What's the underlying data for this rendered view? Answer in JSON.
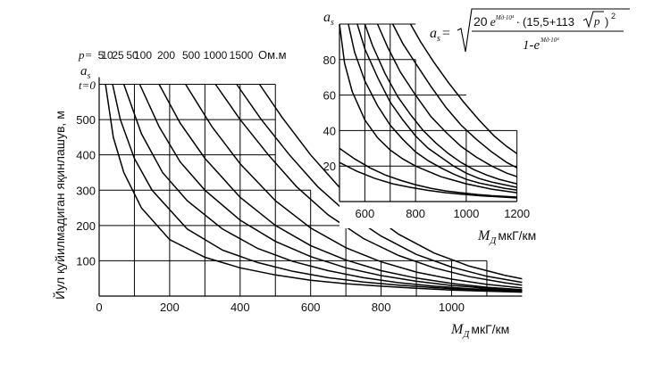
{
  "chart_data": [
    {
      "type": "line",
      "ylabel": "Йул қуйилмадиган яқинлашув, м",
      "xlabel_symbol": "M",
      "xlabel_sub": "Д",
      "xlabel_unit": "мкГ/км",
      "axis_symbol": "a",
      "axis_sub": "s",
      "axis_note": "t=0",
      "xticks": [
        0,
        200,
        400,
        600,
        800,
        1000
      ],
      "yticks": [
        100,
        200,
        300,
        400,
        500
      ],
      "xlim": [
        0,
        1200
      ],
      "ylim": [
        0,
        600
      ],
      "p_prefix": "p=",
      "p_labels": [
        "5",
        "10",
        "25",
        "50",
        "100",
        "200",
        "500",
        "1000",
        "1500"
      ],
      "p_unit": "Ом.м",
      "series": [
        {
          "name": "5",
          "points": [
            [
              18,
              600
            ],
            [
              40,
              450
            ],
            [
              70,
              350
            ],
            [
              120,
              250
            ],
            [
              200,
              160
            ],
            [
              300,
              110
            ],
            [
              400,
              80
            ],
            [
              500,
              60
            ],
            [
              600,
              45
            ],
            [
              700,
              35
            ],
            [
              800,
              28
            ],
            [
              900,
              22
            ],
            [
              1000,
              17
            ],
            [
              1100,
              14
            ],
            [
              1200,
              11
            ]
          ]
        },
        {
          "name": "10",
          "points": [
            [
              38,
              600
            ],
            [
              60,
              500
            ],
            [
              100,
              390
            ],
            [
              150,
              300
            ],
            [
              250,
              190
            ],
            [
              350,
              130
            ],
            [
              450,
              95
            ],
            [
              550,
              70
            ],
            [
              650,
              52
            ],
            [
              750,
              40
            ],
            [
              850,
              31
            ],
            [
              950,
              24
            ],
            [
              1050,
              18
            ],
            [
              1200,
              13
            ]
          ]
        },
        {
          "name": "25",
          "points": [
            [
              70,
              600
            ],
            [
              120,
              460
            ],
            [
              180,
              350
            ],
            [
              250,
              270
            ],
            [
              350,
              190
            ],
            [
              450,
              135
            ],
            [
              550,
              98
            ],
            [
              650,
              72
            ],
            [
              750,
              52
            ],
            [
              850,
              38
            ],
            [
              950,
              28
            ],
            [
              1050,
              21
            ],
            [
              1200,
              15
            ]
          ]
        },
        {
          "name": "50",
          "points": [
            [
              115,
              600
            ],
            [
              170,
              480
            ],
            [
              230,
              380
            ],
            [
              300,
              300
            ],
            [
              400,
              215
            ],
            [
              500,
              155
            ],
            [
              600,
              112
            ],
            [
              700,
              80
            ],
            [
              800,
              58
            ],
            [
              900,
              42
            ],
            [
              1000,
              30
            ],
            [
              1100,
              22
            ],
            [
              1200,
              16
            ]
          ]
        },
        {
          "name": "100",
          "points": [
            [
              170,
              600
            ],
            [
              230,
              490
            ],
            [
              300,
              390
            ],
            [
              400,
              280
            ],
            [
              500,
              200
            ],
            [
              600,
              143
            ],
            [
              700,
              102
            ],
            [
              800,
              72
            ],
            [
              900,
              51
            ],
            [
              1000,
              36
            ],
            [
              1100,
              25
            ],
            [
              1200,
              18
            ]
          ]
        },
        {
          "name": "200",
          "points": [
            [
              245,
              600
            ],
            [
              320,
              480
            ],
            [
              400,
              375
            ],
            [
              500,
              270
            ],
            [
              600,
              193
            ],
            [
              700,
              137
            ],
            [
              800,
              97
            ],
            [
              900,
              68
            ],
            [
              1000,
              48
            ],
            [
              1100,
              33
            ],
            [
              1200,
              23
            ]
          ]
        },
        {
          "name": "500",
          "points": [
            [
              330,
              600
            ],
            [
              400,
              500
            ],
            [
              480,
              400
            ],
            [
              560,
              310
            ],
            [
              650,
              230
            ],
            [
              750,
              163
            ],
            [
              850,
              115
            ],
            [
              950,
              80
            ],
            [
              1050,
              55
            ],
            [
              1150,
              38
            ],
            [
              1200,
              31
            ]
          ]
        },
        {
          "name": "1000",
          "points": [
            [
              390,
              600
            ],
            [
              460,
              500
            ],
            [
              540,
              400
            ],
            [
              620,
              310
            ],
            [
              710,
              230
            ],
            [
              800,
              170
            ],
            [
              900,
              118
            ],
            [
              1000,
              82
            ],
            [
              1100,
              56
            ],
            [
              1200,
              39
            ]
          ]
        },
        {
          "name": "1500",
          "points": [
            [
              455,
              600
            ],
            [
              520,
              505
            ],
            [
              600,
              400
            ],
            [
              680,
              310
            ],
            [
              760,
              240
            ],
            [
              850,
              175
            ],
            [
              950,
              122
            ],
            [
              1050,
              85
            ],
            [
              1150,
              59
            ],
            [
              1200,
              49
            ]
          ]
        }
      ]
    },
    {
      "type": "line",
      "axis_symbol": "a",
      "axis_sub": "s",
      "xlabel_symbol": "M",
      "xlabel_sub": "Д",
      "xlabel_unit": "мкГ/км",
      "xticks": [
        600,
        800,
        1000,
        1200
      ],
      "yticks": [
        20,
        40,
        60,
        80
      ],
      "xlim": [
        500,
        1200
      ],
      "ylim": [
        0,
        100
      ],
      "formula": {
        "lhs": "a",
        "lhs_sub": "s",
        "eq": "=",
        "num_coef": "20",
        "num_e": "e",
        "num_exp1": "Mд·10⁴",
        "num_dot": "·",
        "num_bracket": "(15,5+113",
        "num_sqrt_arg": "p",
        "num_bracket_close": ")",
        "num_pow": "2",
        "den": "1-e",
        "den_exp": "Mд·10⁴"
      },
      "series": [
        {
          "name": "c1",
          "points": [
            [
              500,
              100
            ],
            [
              520,
              78
            ],
            [
              550,
              62
            ],
            [
              600,
              46
            ],
            [
              650,
              36
            ],
            [
              700,
              29
            ],
            [
              750,
              24
            ],
            [
              800,
              20
            ],
            [
              850,
              17
            ],
            [
              900,
              14
            ],
            [
              950,
              12
            ],
            [
              1000,
              10
            ],
            [
              1050,
              8.5
            ],
            [
              1100,
              7
            ],
            [
              1150,
              6
            ],
            [
              1200,
              5
            ]
          ]
        },
        {
          "name": "c2",
          "points": [
            [
              535,
              100
            ],
            [
              560,
              84
            ],
            [
              600,
              68
            ],
            [
              650,
              54
            ],
            [
              700,
              43
            ],
            [
              750,
              35
            ],
            [
              800,
              28
            ],
            [
              850,
              23
            ],
            [
              900,
              19
            ],
            [
              950,
              15.5
            ],
            [
              1000,
              12.5
            ],
            [
              1050,
              10.5
            ],
            [
              1100,
              9
            ],
            [
              1150,
              7.5
            ],
            [
              1200,
              6.5
            ]
          ]
        },
        {
          "name": "c3",
          "points": [
            [
              570,
              100
            ],
            [
              600,
              86
            ],
            [
              650,
              70
            ],
            [
              700,
              56
            ],
            [
              750,
              46
            ],
            [
              800,
              37
            ],
            [
              850,
              30
            ],
            [
              900,
              25
            ],
            [
              950,
              20
            ],
            [
              1000,
              16
            ],
            [
              1050,
              13
            ],
            [
              1100,
              11
            ],
            [
              1150,
              9.5
            ],
            [
              1200,
              8
            ]
          ]
        },
        {
          "name": "c4",
          "points": [
            [
              600,
              100
            ],
            [
              630,
              88
            ],
            [
              680,
              72
            ],
            [
              730,
              59
            ],
            [
              780,
              49
            ],
            [
              830,
              40
            ],
            [
              880,
              33
            ],
            [
              930,
              27
            ],
            [
              980,
              22
            ],
            [
              1030,
              18
            ],
            [
              1080,
              15
            ],
            [
              1130,
              12.5
            ],
            [
              1200,
              10
            ]
          ]
        },
        {
          "name": "c5",
          "points": [
            [
              650,
              100
            ],
            [
              690,
              87
            ],
            [
              740,
              73
            ],
            [
              800,
              60
            ],
            [
              860,
              48
            ],
            [
              920,
              39
            ],
            [
              980,
              31
            ],
            [
              1040,
              25
            ],
            [
              1100,
              20
            ],
            [
              1160,
              16
            ],
            [
              1200,
              14
            ]
          ]
        },
        {
          "name": "c6",
          "points": [
            [
              710,
              100
            ],
            [
              750,
              89
            ],
            [
              800,
              78
            ],
            [
              860,
              65
            ],
            [
              920,
              53
            ],
            [
              980,
              43
            ],
            [
              1040,
              35
            ],
            [
              1100,
              28
            ],
            [
              1160,
              22
            ],
            [
              1200,
              19
            ]
          ]
        },
        {
          "name": "c7",
          "points": [
            [
              780,
              100
            ],
            [
              820,
              90
            ],
            [
              870,
              79
            ],
            [
              930,
              67
            ],
            [
              990,
              56
            ],
            [
              1050,
              46
            ],
            [
              1110,
              37
            ],
            [
              1160,
              31
            ],
            [
              1200,
              27
            ]
          ]
        },
        {
          "name": "c8",
          "points": [
            [
              500,
              30
            ],
            [
              560,
              24
            ],
            [
              620,
              19
            ],
            [
              680,
              15
            ],
            [
              740,
              12
            ],
            [
              800,
              9.5
            ],
            [
              860,
              7.5
            ],
            [
              920,
              6
            ],
            [
              980,
              5
            ],
            [
              1040,
              4
            ],
            [
              1100,
              3.3
            ],
            [
              1200,
              2.5
            ]
          ]
        },
        {
          "name": "c9",
          "points": [
            [
              500,
              22
            ],
            [
              570,
              17
            ],
            [
              640,
              13
            ],
            [
              710,
              10
            ],
            [
              780,
              8
            ],
            [
              850,
              6.3
            ],
            [
              920,
              5
            ],
            [
              990,
              4
            ],
            [
              1060,
              3.2
            ],
            [
              1130,
              2.6
            ],
            [
              1200,
              2
            ]
          ]
        }
      ]
    }
  ]
}
